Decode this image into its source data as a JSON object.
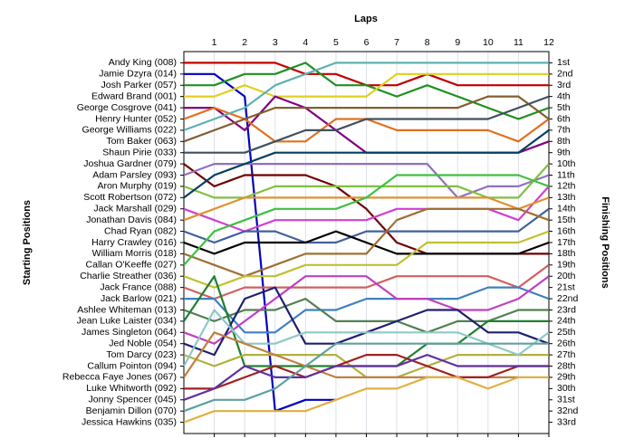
{
  "chart_data": {
    "type": "line",
    "title": "Laps",
    "ylabel": "Starting Positions",
    "y2label": "Finishing Positions",
    "x": [
      0,
      1,
      2,
      3,
      4,
      5,
      6,
      7,
      8,
      9,
      10,
      11,
      12
    ],
    "xlim": [
      0,
      12
    ],
    "xticks": [
      1,
      2,
      3,
      4,
      5,
      6,
      7,
      8,
      9,
      10,
      11,
      12
    ],
    "ylim": [
      34,
      0
    ],
    "y2lim": [
      34,
      0
    ],
    "y2ticks": [
      {
        "value": 1,
        "label": "1st"
      },
      {
        "value": 2,
        "label": "2nd"
      },
      {
        "value": 3,
        "label": "3rd"
      },
      {
        "value": 4,
        "label": "4th"
      },
      {
        "value": 5,
        "label": "5th"
      },
      {
        "value": 6,
        "label": "6th"
      },
      {
        "value": 7,
        "label": "7th"
      },
      {
        "value": 8,
        "label": "8th"
      },
      {
        "value": 9,
        "label": "9th"
      },
      {
        "value": 10,
        "label": "10th"
      },
      {
        "value": 11,
        "label": "11th"
      },
      {
        "value": 12,
        "label": "12th"
      },
      {
        "value": 13,
        "label": "13th"
      },
      {
        "value": 14,
        "label": "14th"
      },
      {
        "value": 15,
        "label": "15th"
      },
      {
        "value": 16,
        "label": "16th"
      },
      {
        "value": 17,
        "label": "17th"
      },
      {
        "value": 18,
        "label": "18th"
      },
      {
        "value": 19,
        "label": "19th"
      },
      {
        "value": 20,
        "label": "20th"
      },
      {
        "value": 21,
        "label": "21st"
      },
      {
        "value": 22,
        "label": "22nd"
      },
      {
        "value": 23,
        "label": "23rd"
      },
      {
        "value": 24,
        "label": "24th"
      },
      {
        "value": 25,
        "label": "25th"
      },
      {
        "value": 26,
        "label": "26th"
      },
      {
        "value": 27,
        "label": "27th"
      },
      {
        "value": 28,
        "label": "28th"
      },
      {
        "value": 29,
        "label": "29th"
      },
      {
        "value": 30,
        "label": "30th"
      },
      {
        "value": 31,
        "label": "31st"
      },
      {
        "value": 32,
        "label": "32nd"
      },
      {
        "value": 33,
        "label": "33rd"
      }
    ],
    "grid": true,
    "series": [
      {
        "name": "Andy King (008)",
        "color": "#c00000",
        "values": [
          1,
          1,
          1,
          1,
          2,
          2,
          3,
          3,
          2,
          3,
          3,
          3,
          3
        ]
      },
      {
        "name": "Jamie Dzyra (014)",
        "color": "#0000c0",
        "values": [
          2,
          2,
          4,
          32,
          31,
          31,
          null,
          null,
          null,
          null,
          null,
          null,
          null
        ]
      },
      {
        "name": "Josh Parker (057)",
        "color": "#209020",
        "values": [
          3,
          3,
          2,
          2,
          1,
          3,
          3,
          4,
          3,
          4,
          5,
          6,
          5
        ]
      },
      {
        "name": "Edward Brand (001)",
        "color": "#e0d020",
        "values": [
          4,
          4,
          3,
          4,
          4,
          4,
          4,
          2,
          2,
          2,
          2,
          2,
          2
        ]
      },
      {
        "name": "George Cosgrove (041)",
        "color": "#800080",
        "values": [
          5,
          5,
          7,
          4,
          5,
          7,
          9,
          9,
          9,
          9,
          9,
          9,
          8
        ]
      },
      {
        "name": "Henry Hunter (052)",
        "color": "#e07020",
        "values": [
          6,
          5,
          6,
          8,
          8,
          6,
          6,
          7,
          7,
          7,
          7,
          8,
          6
        ]
      },
      {
        "name": "George Williams (022)",
        "color": "#60b0b0",
        "values": [
          7,
          6,
          5,
          3,
          2,
          1,
          1,
          1,
          1,
          1,
          1,
          1,
          1
        ]
      },
      {
        "name": "Tom Baker (063)",
        "color": "#806030",
        "values": [
          8,
          7,
          6,
          5,
          5,
          5,
          5,
          5,
          5,
          5,
          4,
          4,
          6
        ]
      },
      {
        "name": "Shaun Pirie (033)",
        "color": "#405060",
        "values": [
          9,
          9,
          9,
          8,
          7,
          7,
          6,
          6,
          6,
          6,
          6,
          5,
          4
        ]
      },
      {
        "name": "Joshua Gardner (079)",
        "color": "#700000",
        "values": [
          10,
          12,
          11,
          11,
          11,
          12,
          14,
          17,
          18,
          18,
          18,
          18,
          18
        ]
      },
      {
        "name": "Adam Parsley (093)",
        "color": "#9070c0",
        "values": [
          11,
          10,
          10,
          10,
          10,
          10,
          10,
          10,
          10,
          13,
          12,
          12,
          11
        ]
      },
      {
        "name": "Aron Murphy (019)",
        "color": "#80c040",
        "values": [
          12,
          13,
          13,
          12,
          12,
          12,
          12,
          12,
          12,
          12,
          13,
          13,
          10
        ]
      },
      {
        "name": "Scott Robertson (072)",
        "color": "#004060",
        "values": [
          13,
          11,
          10,
          9,
          9,
          9,
          9,
          9,
          9,
          9,
          9,
          9,
          7
        ]
      },
      {
        "name": "Jack Marshall (029)",
        "color": "#d040d0",
        "values": [
          14,
          15,
          16,
          15,
          15,
          15,
          15,
          14,
          14,
          14,
          14,
          15,
          12
        ]
      },
      {
        "name": "Jonathan Davis (084)",
        "color": "#e09030",
        "values": [
          15,
          14,
          13,
          13,
          13,
          13,
          13,
          13,
          13,
          13,
          13,
          14,
          13
        ]
      },
      {
        "name": "Chad Ryan (082)",
        "color": "#4060a0",
        "values": [
          16,
          17,
          16,
          16,
          17,
          17,
          16,
          16,
          16,
          16,
          16,
          16,
          14
        ]
      },
      {
        "name": "Harry Crawley (016)",
        "color": "#000000",
        "values": [
          17,
          18,
          17,
          17,
          17,
          16,
          17,
          18,
          18,
          18,
          18,
          18,
          17
        ]
      },
      {
        "name": "William Morris (018)",
        "color": "#a07030",
        "values": [
          18,
          19,
          20,
          19,
          18,
          18,
          18,
          15,
          14,
          14,
          14,
          14,
          15
        ]
      },
      {
        "name": "Callan O'Keeffe (027)",
        "color": "#40c040",
        "values": [
          19,
          16,
          15,
          14,
          14,
          14,
          13,
          11,
          11,
          11,
          11,
          11,
          12
        ]
      },
      {
        "name": "Charlie Streather (036)",
        "color": "#c0c030",
        "values": [
          20,
          21,
          20,
          20,
          19,
          19,
          19,
          19,
          17,
          17,
          17,
          17,
          16
        ]
      },
      {
        "name": "Jack France (088)",
        "color": "#d06060",
        "values": [
          21,
          22,
          21,
          21,
          21,
          21,
          21,
          20,
          20,
          20,
          20,
          21,
          19
        ]
      },
      {
        "name": "Jack Barlow (021)",
        "color": "#4080c0",
        "values": [
          22,
          22,
          25,
          25,
          23,
          23,
          22,
          22,
          22,
          22,
          21,
          21,
          22
        ]
      },
      {
        "name": "Ashlee Whiteman (013)",
        "color": "#508050",
        "values": [
          23,
          24,
          23,
          23,
          22,
          24,
          24,
          24,
          25,
          24,
          24,
          23,
          23
        ]
      },
      {
        "name": "Jean Luke Laister (034)",
        "color": "#208030",
        "values": [
          24,
          20,
          28,
          28,
          28,
          28,
          28,
          28,
          26,
          26,
          24,
          24,
          24
        ]
      },
      {
        "name": "James Singleton (064)",
        "color": "#c040c0",
        "values": [
          25,
          26,
          24,
          22,
          20,
          20,
          20,
          22,
          22,
          23,
          23,
          22,
          20
        ]
      },
      {
        "name": "Jed Noble (054)",
        "color": "#202070",
        "values": [
          26,
          27,
          22,
          21,
          26,
          26,
          25,
          24,
          23,
          23,
          25,
          25,
          26
        ]
      },
      {
        "name": "Tom Darcy (023)",
        "color": "#b0b040",
        "values": [
          27,
          28,
          27,
          27,
          27,
          27,
          29,
          29,
          28,
          27,
          27,
          27,
          27
        ]
      },
      {
        "name": "Callum Pointon (094)",
        "color": "#90c8c8",
        "values": [
          28,
          23,
          26,
          26,
          25,
          25,
          25,
          25,
          25,
          25,
          26,
          27,
          25
        ]
      },
      {
        "name": "Rebecca Faye Jones (067)",
        "color": "#c08040",
        "values": [
          29,
          25,
          26,
          27,
          28,
          29,
          29,
          29,
          29,
          29,
          29,
          29,
          null
        ]
      },
      {
        "name": "Luke Whitworth (092)",
        "color": "#a02020",
        "values": [
          30,
          30,
          29,
          28,
          29,
          28,
          27,
          27,
          28,
          29,
          29,
          28,
          28
        ]
      },
      {
        "name": "Jonny Spencer (045)",
        "color": "#6030a0",
        "values": [
          31,
          30,
          28,
          29,
          29,
          28,
          28,
          28,
          27,
          28,
          28,
          28,
          28
        ]
      },
      {
        "name": "Benjamin Dillon (070)",
        "color": "#60a0a0",
        "values": [
          32,
          31,
          31,
          30,
          28,
          26,
          26,
          26,
          26,
          26,
          26,
          26,
          26
        ]
      },
      {
        "name": "Jessica Hawkins (035)",
        "color": "#e0b040",
        "values": [
          33,
          32,
          32,
          32,
          32,
          31,
          30,
          30,
          29,
          29,
          30,
          29,
          29
        ]
      }
    ]
  }
}
